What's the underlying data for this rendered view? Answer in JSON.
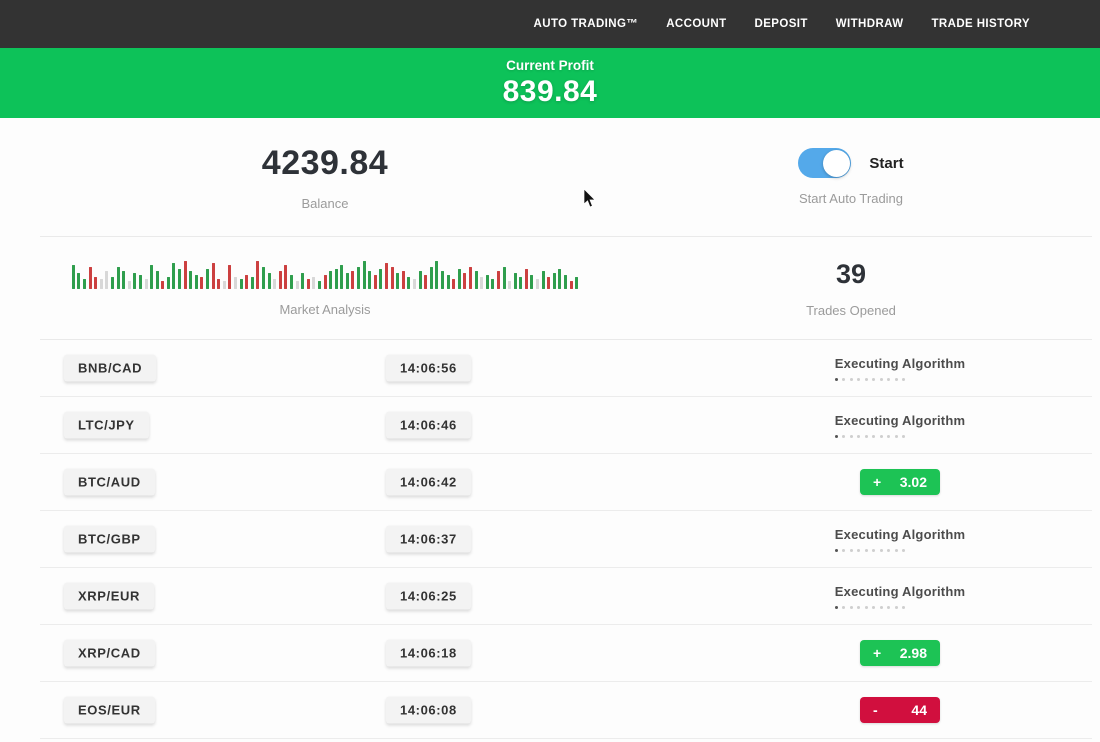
{
  "nav": {
    "items": [
      {
        "label": "AUTO TRADING™"
      },
      {
        "label": "ACCOUNT"
      },
      {
        "label": "DEPOSIT"
      },
      {
        "label": "WITHDRAW"
      },
      {
        "label": "TRADE HISTORY"
      }
    ]
  },
  "profit_banner": {
    "label": "Current Profit",
    "value": "839.84"
  },
  "stats": {
    "balance": {
      "value": "4239.84",
      "label": "Balance"
    },
    "auto_trading": {
      "toggle_label": "Start",
      "label": "Start Auto Trading",
      "toggle_on": true
    },
    "market": {
      "label": "Market Analysis"
    },
    "trades": {
      "value": "39",
      "label": "Trades Opened"
    }
  },
  "market_bars": [
    "g24",
    "g16",
    "g10",
    "r22",
    "r12",
    "l10",
    "l18",
    "g12",
    "g22",
    "g18",
    "l8",
    "g16",
    "g14",
    "l10",
    "g24",
    "g18",
    "r8",
    "g12",
    "g26",
    "g20",
    "r28",
    "g18",
    "g14",
    "r12",
    "g20",
    "r26",
    "r10",
    "l8",
    "r24",
    "l12",
    "g10",
    "r14",
    "g12",
    "r28",
    "g22",
    "g16",
    "l10",
    "r18",
    "r24",
    "g14",
    "l8",
    "g16",
    "r10",
    "l12",
    "g8",
    "r14",
    "g18",
    "g20",
    "g24",
    "g16",
    "r18",
    "g22",
    "g28",
    "g18",
    "r14",
    "g20",
    "r26",
    "r22",
    "g16",
    "r18",
    "g12",
    "l10",
    "g18",
    "r14",
    "g22",
    "g28",
    "g18",
    "g14",
    "r10",
    "g20",
    "r16",
    "r22",
    "g18",
    "l12",
    "g14",
    "g10",
    "r18",
    "g22",
    "l8",
    "g16",
    "g12",
    "r20",
    "g14",
    "l10",
    "g18",
    "r12",
    "g16",
    "g20",
    "g14",
    "r8",
    "g12"
  ],
  "executing_indicator": {
    "dots_total": 10,
    "dots_active": 1
  },
  "rows": [
    {
      "pair": "BNB/CAD",
      "time": "14:06:56",
      "status": {
        "type": "executing",
        "label": "Executing Algorithm"
      }
    },
    {
      "pair": "LTC/JPY",
      "time": "14:06:46",
      "status": {
        "type": "executing",
        "label": "Executing Algorithm"
      }
    },
    {
      "pair": "BTC/AUD",
      "time": "14:06:42",
      "status": {
        "type": "profit",
        "sign": "+",
        "value": "3.02"
      }
    },
    {
      "pair": "BTC/GBP",
      "time": "14:06:37",
      "status": {
        "type": "executing",
        "label": "Executing Algorithm"
      }
    },
    {
      "pair": "XRP/EUR",
      "time": "14:06:25",
      "status": {
        "type": "executing",
        "label": "Executing Algorithm"
      }
    },
    {
      "pair": "XRP/CAD",
      "time": "14:06:18",
      "status": {
        "type": "profit",
        "sign": "+",
        "value": "2.98"
      }
    },
    {
      "pair": "EOS/EUR",
      "time": "14:06:08",
      "status": {
        "type": "loss",
        "sign": "-",
        "value": "44"
      }
    }
  ],
  "colors": {
    "nav_bg": "#333333",
    "banner_green": "#0dc259",
    "profit_green": "#1dc355",
    "loss_red": "#d10f3e",
    "toggle_blue": "#54a9ea",
    "bar_green": "#2f9e4d",
    "bar_red": "#cc4040"
  }
}
